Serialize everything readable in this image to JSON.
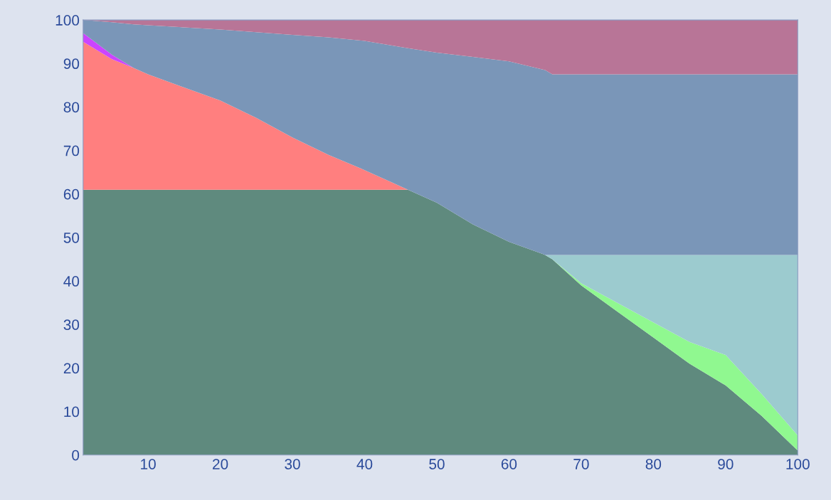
{
  "chart_data": {
    "type": "area",
    "stacked": true,
    "x": [
      1,
      5,
      8,
      10,
      15,
      20,
      25,
      30,
      35,
      40,
      46,
      50,
      55,
      60,
      65,
      66,
      70,
      75,
      80,
      85,
      90,
      95,
      100
    ],
    "series": [
      {
        "color": "#5f8a7e",
        "values": [
          61,
          61,
          61,
          61,
          61,
          61,
          61,
          61,
          61,
          61,
          61,
          58,
          53,
          49,
          46,
          45,
          39,
          33,
          27,
          21,
          16,
          9,
          1
        ]
      },
      {
        "color": "#90f890",
        "values": [
          0,
          0,
          0,
          0,
          0,
          0,
          0,
          0,
          0,
          0,
          0,
          0,
          0,
          0,
          0,
          0,
          0.5,
          2,
          3.5,
          5,
          7,
          5,
          3.5
        ]
      },
      {
        "color": "#9ccbcf",
        "values": [
          0,
          0,
          0,
          0,
          0,
          0,
          0,
          0,
          0,
          0,
          0,
          0,
          0,
          0,
          0,
          1,
          6.5,
          11,
          15.5,
          20,
          23,
          32,
          41.5
        ]
      },
      {
        "color": "#ff7f7f",
        "values": [
          34,
          30,
          28,
          26.5,
          23.5,
          20.5,
          16.5,
          12,
          8,
          4.5,
          0,
          0,
          0,
          0,
          0,
          0,
          0,
          0,
          0,
          0,
          0,
          0,
          0
        ]
      },
      {
        "color": "#cc44ff",
        "values": [
          2,
          1,
          0,
          0,
          0,
          0,
          0,
          0,
          0,
          0,
          0,
          0,
          0,
          0,
          0,
          0,
          0,
          0,
          0,
          0,
          0,
          0,
          0
        ]
      },
      {
        "color": "#7a96b8",
        "values": [
          3,
          7.5,
          10,
          11.3,
          13.8,
          16.3,
          19.7,
          23.6,
          27,
          29.7,
          32.5,
          34.5,
          38.5,
          41.5,
          42.5,
          41.5,
          41.5,
          41.5,
          41.5,
          41.5,
          41.5,
          41.5,
          41.5
        ]
      },
      {
        "color": "#b87597",
        "values": [
          0,
          0.5,
          1,
          1.2,
          1.7,
          2.2,
          2.8,
          3.4,
          4,
          4.8,
          6.5,
          7.5,
          8.5,
          9.5,
          11.5,
          12.5,
          12.5,
          12.5,
          12.5,
          12.5,
          12.5,
          12.5,
          12.5
        ]
      }
    ],
    "xlim": [
      1,
      100
    ],
    "xticks": [
      10,
      20,
      30,
      40,
      50,
      60,
      70,
      80,
      90,
      100
    ],
    "ylim": [
      0,
      100
    ],
    "yticks": [
      0,
      10,
      20,
      30,
      40,
      50,
      60,
      70,
      80,
      90,
      100
    ],
    "grid": false,
    "legend": false
  }
}
